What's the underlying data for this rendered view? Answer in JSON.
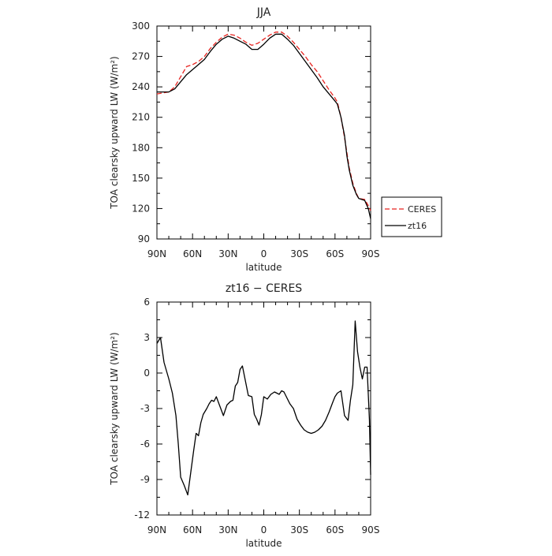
{
  "chart_data": [
    {
      "type": "line",
      "title": "JJA",
      "xlabel": "latitude",
      "ylabel": "TOA clearsky upward LW (W/m²)",
      "xticks": [
        "90N",
        "60N",
        "30N",
        "0",
        "30S",
        "60S",
        "90S"
      ],
      "xlim": [
        90,
        -90
      ],
      "ylim": [
        90,
        300
      ],
      "yticks": [
        90,
        120,
        150,
        180,
        210,
        240,
        270,
        300
      ],
      "legend": {
        "position": "right",
        "entries": [
          "CERES",
          "zt16"
        ]
      },
      "series": [
        {
          "name": "CERES",
          "color": "#e8231f",
          "style": "dashed",
          "x": [
            90,
            85,
            80,
            75,
            70,
            65,
            60,
            55,
            50,
            45,
            40,
            35,
            30,
            25,
            20,
            15,
            10,
            5,
            0,
            -5,
            -10,
            -15,
            -20,
            -25,
            -30,
            -35,
            -40,
            -45,
            -50,
            -55,
            -60,
            -62,
            -65,
            -68,
            -70,
            -72,
            -75,
            -78,
            -80,
            -85,
            -88,
            -90
          ],
          "y": [
            233,
            234,
            235,
            240,
            250,
            260,
            262,
            265,
            270,
            278,
            284,
            289,
            292,
            291,
            288,
            284,
            281,
            283,
            287,
            291,
            294,
            294,
            290,
            284,
            277,
            270,
            262,
            255,
            246,
            237,
            229,
            225,
            210,
            190,
            175,
            160,
            145,
            135,
            130,
            129,
            123,
            118
          ]
        },
        {
          "name": "zt16",
          "color": "#000000",
          "style": "solid",
          "x": [
            90,
            85,
            80,
            75,
            70,
            65,
            60,
            55,
            50,
            45,
            40,
            35,
            30,
            25,
            20,
            15,
            10,
            5,
            0,
            -5,
            -10,
            -15,
            -20,
            -25,
            -30,
            -35,
            -40,
            -45,
            -50,
            -55,
            -60,
            -62,
            -65,
            -68,
            -70,
            -72,
            -75,
            -78,
            -80,
            -85,
            -88,
            -90
          ],
          "y": [
            235,
            235,
            235,
            238,
            245,
            252,
            257,
            262,
            267,
            275,
            282,
            287,
            290,
            288,
            285,
            282,
            277,
            277,
            282,
            288,
            292,
            292,
            287,
            281,
            273,
            265,
            257,
            249,
            240,
            233,
            226,
            223,
            210,
            192,
            172,
            158,
            143,
            134,
            130,
            128,
            120,
            110
          ]
        }
      ]
    },
    {
      "type": "line",
      "title": "zt16 − CERES",
      "xlabel": "latitude",
      "ylabel": "TOA clearsky upward LW (W/m²)",
      "xticks": [
        "90N",
        "60N",
        "30N",
        "0",
        "30S",
        "60S",
        "90S"
      ],
      "xlim": [
        90,
        -90
      ],
      "ylim": [
        -12,
        6
      ],
      "yticks": [
        -12,
        -9,
        -6,
        -3,
        0,
        3,
        6
      ],
      "series": [
        {
          "color": "#000000",
          "style": "solid",
          "x": [
            90,
            87,
            84,
            80,
            77,
            74,
            72,
            70,
            67,
            64,
            61,
            59,
            57,
            55,
            53,
            51,
            48,
            46,
            44,
            42,
            40,
            37,
            34,
            31,
            28,
            26,
            24,
            22,
            20,
            18,
            15,
            13,
            10,
            8,
            6,
            4,
            2,
            0,
            -3,
            -6,
            -9,
            -11,
            -13,
            -15,
            -17,
            -19,
            -22,
            -25,
            -28,
            -31,
            -34,
            -37,
            -40,
            -43,
            -46,
            -49,
            -52,
            -55,
            -58,
            -60,
            -62,
            -65,
            -68,
            -71,
            -73,
            -75,
            -77,
            -79,
            -81,
            -83,
            -85,
            -87,
            -89,
            -90
          ],
          "y": [
            2.5,
            3.0,
            0.9,
            -0.5,
            -1.7,
            -3.6,
            -6.0,
            -8.8,
            -9.5,
            -10.3,
            -8.0,
            -6.5,
            -5.1,
            -5.3,
            -4.2,
            -3.5,
            -3.0,
            -2.6,
            -2.3,
            -2.4,
            -2.0,
            -2.8,
            -3.6,
            -2.7,
            -2.4,
            -2.3,
            -1.1,
            -0.8,
            0.3,
            0.6,
            -0.9,
            -1.9,
            -2.0,
            -3.5,
            -3.9,
            -4.4,
            -3.5,
            -2.0,
            -2.2,
            -1.8,
            -1.6,
            -1.7,
            -1.8,
            -1.5,
            -1.6,
            -2.0,
            -2.6,
            -3.0,
            -3.9,
            -4.4,
            -4.8,
            -5.0,
            -5.1,
            -5.0,
            -4.8,
            -4.5,
            -4.0,
            -3.3,
            -2.5,
            -2.0,
            -1.7,
            -1.5,
            -3.6,
            -4.0,
            -2.3,
            -1.0,
            4.4,
            1.8,
            0.5,
            -0.5,
            0.5,
            0.5,
            -4.0,
            -8.6
          ]
        }
      ]
    }
  ]
}
